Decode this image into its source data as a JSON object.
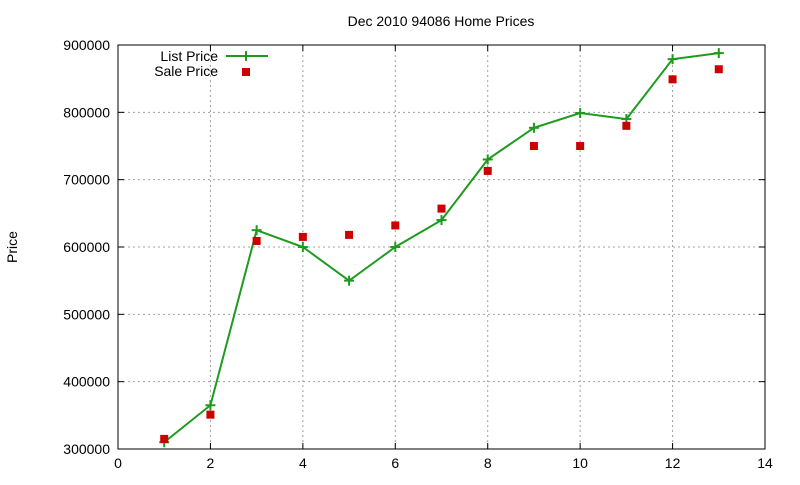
{
  "chart_data": {
    "type": "line",
    "title": "Dec 2010 94086 Home Prices",
    "xlabel": "",
    "ylabel": "Price",
    "xlim": [
      0,
      14
    ],
    "ylim": [
      300000,
      900000
    ],
    "x_ticks": [
      0,
      2,
      4,
      6,
      8,
      10,
      12,
      14
    ],
    "y_ticks": [
      300000,
      400000,
      500000,
      600000,
      700000,
      800000,
      900000
    ],
    "grid": true,
    "legend_position": "top-left",
    "series": [
      {
        "name": "List Price",
        "style": "line-with-plus-markers",
        "color": "#1e9b1e",
        "x": [
          1,
          2,
          3,
          4,
          5,
          6,
          7,
          8,
          9,
          10,
          11,
          12,
          13
        ],
        "values": [
          310000,
          365000,
          625000,
          600000,
          550000,
          600000,
          640000,
          730000,
          777000,
          799000,
          790000,
          879000,
          888000
        ]
      },
      {
        "name": "Sale Price",
        "style": "square-markers",
        "color": "#cc0000",
        "x": [
          1,
          2,
          3,
          4,
          5,
          6,
          7,
          8,
          9,
          10,
          11,
          12,
          13
        ],
        "values": [
          315000,
          351000,
          609000,
          615000,
          618000,
          632000,
          657000,
          713000,
          750000,
          750000,
          780000,
          849000,
          864000
        ]
      }
    ]
  }
}
